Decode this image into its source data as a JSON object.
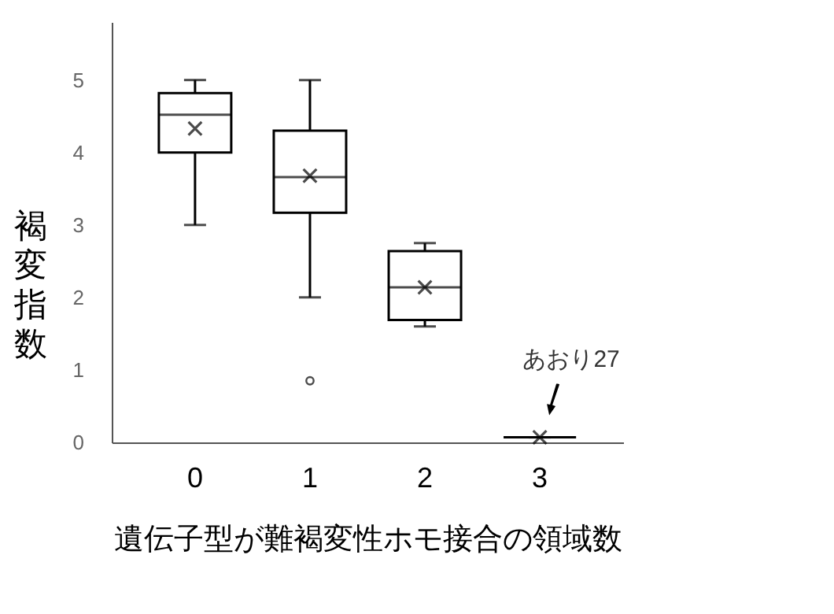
{
  "chart_data": {
    "type": "box",
    "xlabel": "遺伝子型が難褐変性ホモ接合の領域数",
    "ylabel": "褐変指数",
    "categories": [
      "0",
      "1",
      "2",
      "3"
    ],
    "boxes": [
      {
        "low": 3.0,
        "q1": 4.0,
        "median": 4.52,
        "q3": 4.82,
        "high": 5.0,
        "mean": 4.33
      },
      {
        "low": 2.0,
        "q1": 3.17,
        "median": 3.66,
        "q3": 4.3,
        "high": 5.0,
        "mean": 3.68,
        "outliers": [
          0.85
        ]
      },
      {
        "low": 1.6,
        "q1": 1.69,
        "median": 2.14,
        "q3": 2.64,
        "high": 2.75,
        "mean": 2.14
      },
      {
        "low": 0.07,
        "q1": 0.07,
        "median": 0.07,
        "q3": 0.07,
        "high": 0.07,
        "mean": 0.07
      }
    ],
    "ylim": [
      0,
      5.8
    ],
    "yticks": [
      0,
      1,
      2,
      3,
      4,
      5
    ],
    "grid": false,
    "annotations": [
      {
        "text": "あおり27",
        "x": "3",
        "y": 0.07
      }
    ]
  }
}
